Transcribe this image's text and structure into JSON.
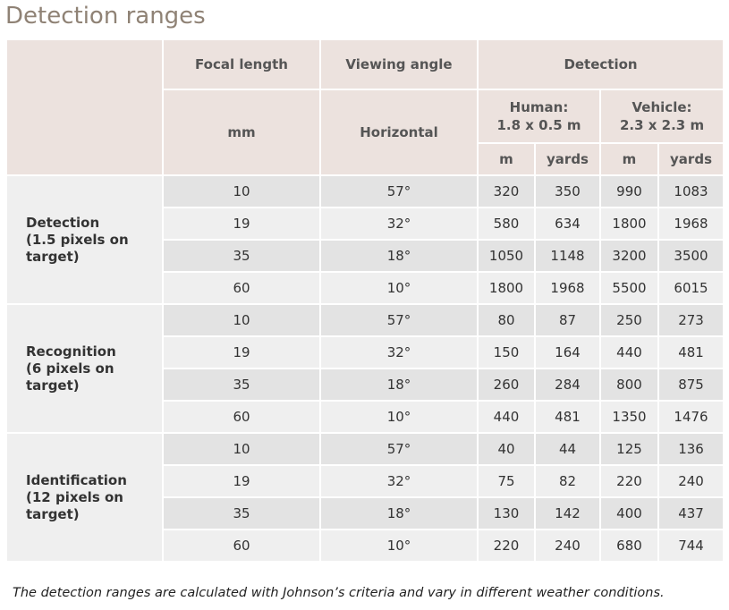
{
  "title": "Detection ranges",
  "header": {
    "focal_length": "Focal length",
    "viewing_angle": "Viewing angle",
    "detection": "Detection",
    "mm": "mm",
    "horizontal": "Horizontal",
    "human": "Human:\n1.8 x 0.5 m",
    "vehicle": "Vehicle:\n2.3 x 2.3 m",
    "units": [
      "m",
      "yards",
      "m",
      "yards"
    ]
  },
  "groups": [
    {
      "label": "Detection\n(1.5 pixels on\ntarget)",
      "rows": [
        [
          "10",
          "57°",
          "320",
          "350",
          "990",
          "1083"
        ],
        [
          "19",
          "32°",
          "580",
          "634",
          "1800",
          "1968"
        ],
        [
          "35",
          "18°",
          "1050",
          "1148",
          "3200",
          "3500"
        ],
        [
          "60",
          "10°",
          "1800",
          "1968",
          "5500",
          "6015"
        ]
      ]
    },
    {
      "label": "Recognition\n(6 pixels on\ntarget)",
      "rows": [
        [
          "10",
          "57°",
          "80",
          "87",
          "250",
          "273"
        ],
        [
          "19",
          "32°",
          "150",
          "164",
          "440",
          "481"
        ],
        [
          "35",
          "18°",
          "260",
          "284",
          "800",
          "875"
        ],
        [
          "60",
          "10°",
          "440",
          "481",
          "1350",
          "1476"
        ]
      ]
    },
    {
      "label": "Identification\n(12 pixels on\ntarget)",
      "rows": [
        [
          "10",
          "57°",
          "40",
          "44",
          "125",
          "136"
        ],
        [
          "19",
          "32°",
          "75",
          "82",
          "220",
          "240"
        ],
        [
          "35",
          "18°",
          "130",
          "142",
          "400",
          "437"
        ],
        [
          "60",
          "10°",
          "220",
          "240",
          "680",
          "744"
        ]
      ]
    }
  ],
  "note": "The detection ranges are calculated with Johnson’s criteria and vary in different weather conditions."
}
